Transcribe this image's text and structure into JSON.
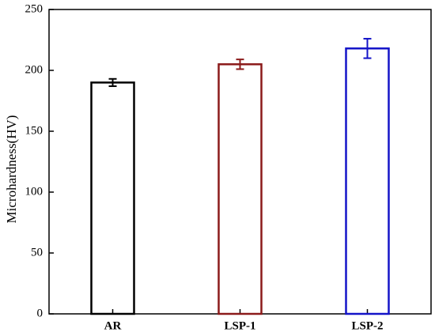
{
  "chart_data": {
    "type": "bar",
    "ylabel": "Microhardness(HV)",
    "categories": [
      "AR",
      "LSP-1",
      "LSP-2"
    ],
    "values": [
      190,
      205,
      218
    ],
    "errors": [
      3,
      4,
      8
    ],
    "colors": [
      "#000000",
      "#8b1a1a",
      "#1414c8"
    ],
    "ylim": [
      0,
      250
    ],
    "yticks": [
      0,
      50,
      100,
      150,
      200,
      250
    ]
  }
}
